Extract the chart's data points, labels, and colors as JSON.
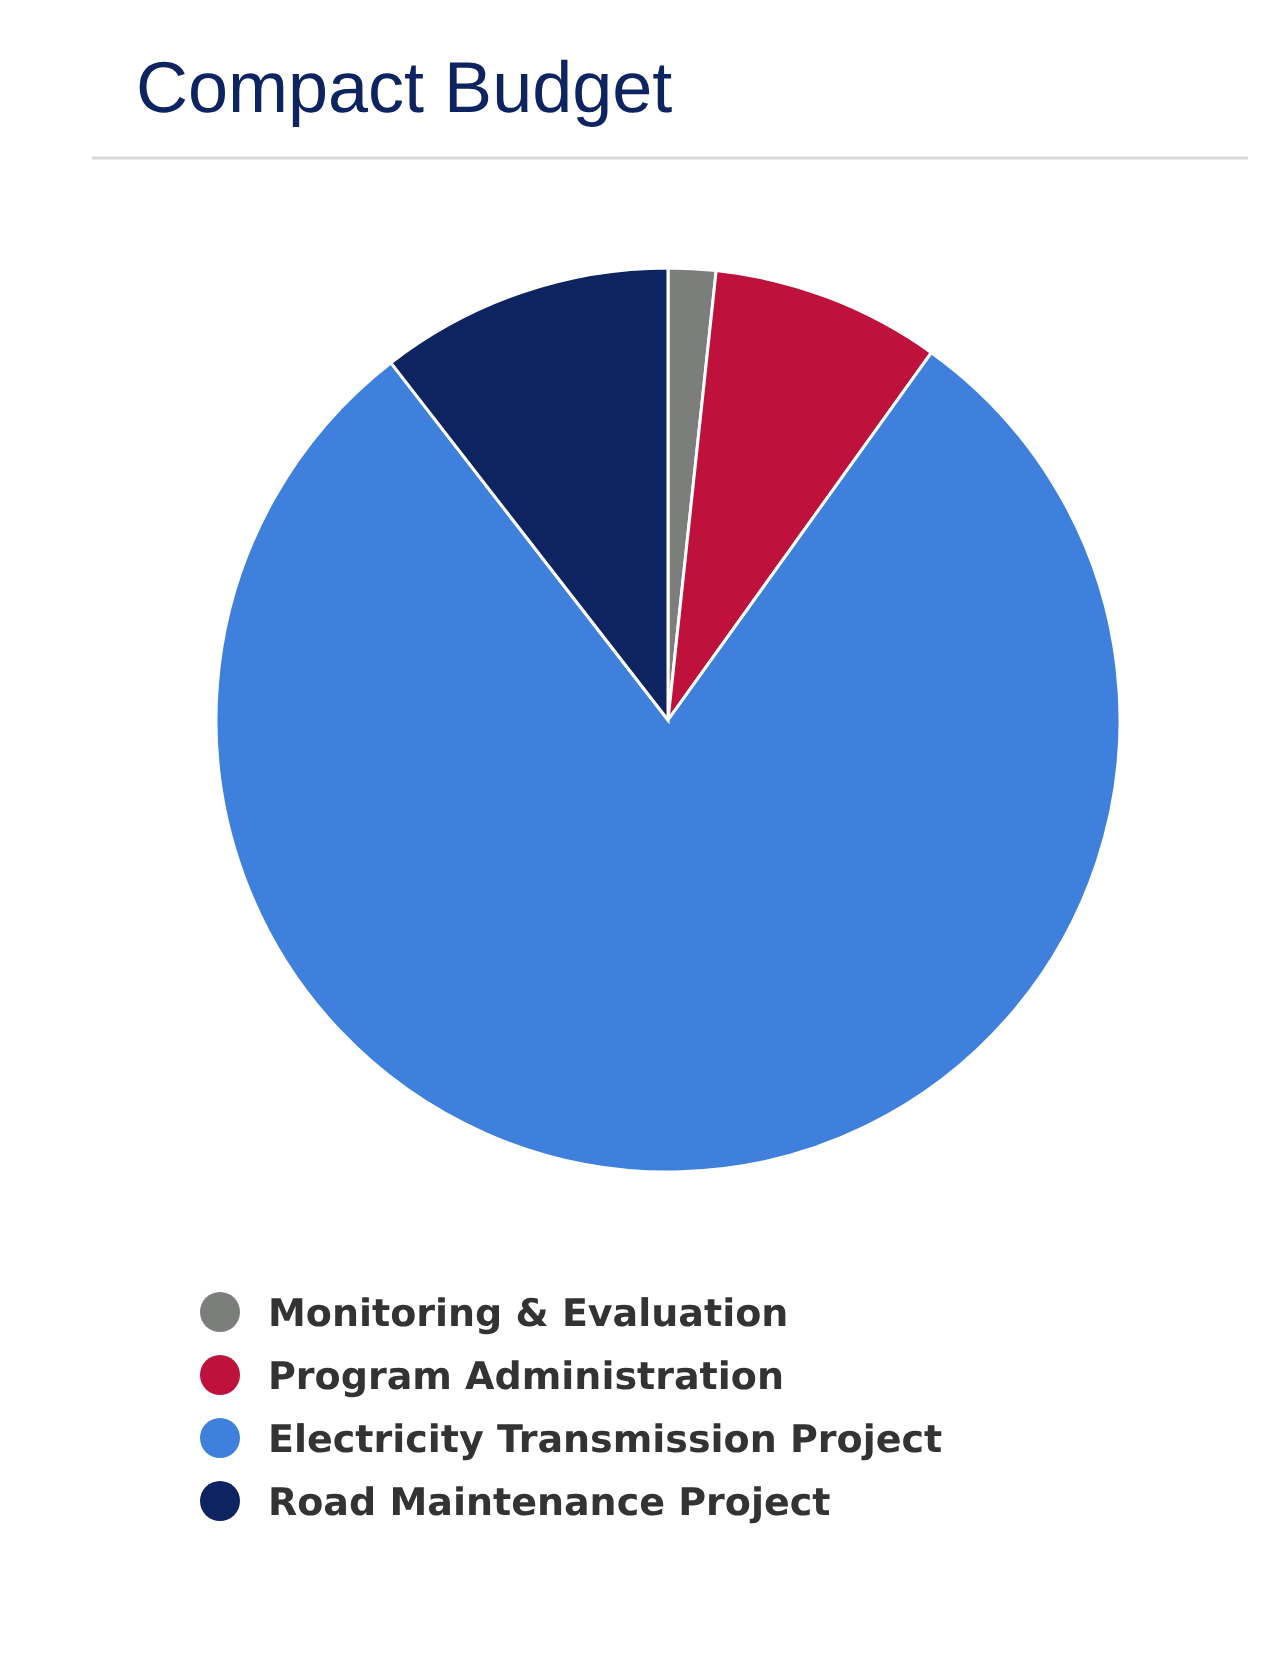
{
  "chart_data": {
    "type": "pie",
    "title": "Compact Budget",
    "categories": [
      "Monitoring & Evaluation",
      "Program Administration",
      "Electricity Transmission Project",
      "Road Maintenance Project"
    ],
    "values": [
      1.7,
      8.2,
      79.6,
      10.5
    ],
    "colors": [
      "#7b7e7b",
      "#be123c",
      "#3f80dc",
      "#0d2461"
    ],
    "legend": "bottom"
  }
}
